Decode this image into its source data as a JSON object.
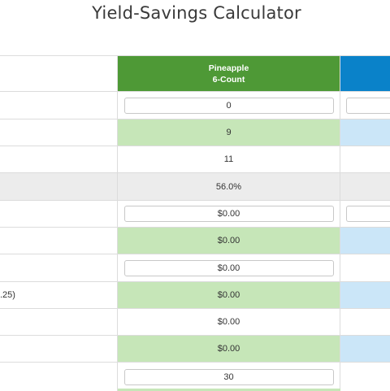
{
  "page_title": "Yield-Savings Calculator",
  "columns": {
    "col1_header_line1": "Pineapple",
    "col1_header_line2": "6-Count"
  },
  "rows": [
    {
      "label": "",
      "value": "0",
      "kind": "input",
      "has_col2_input": true
    },
    {
      "label": "",
      "value": "9",
      "kind": "green"
    },
    {
      "label": "",
      "value": "11",
      "kind": "plain"
    },
    {
      "label": "",
      "value": "56.0%",
      "kind": "gray"
    },
    {
      "label": "",
      "value": "$0.00",
      "kind": "input",
      "has_col2_input": true
    },
    {
      "label": "",
      "value": "$0.00",
      "kind": "green"
    },
    {
      "label": "",
      "value": "$0.00",
      "kind": "input"
    },
    {
      "label": ".25)",
      "value": "$0.00",
      "kind": "green"
    },
    {
      "label": "",
      "value": "$0.00",
      "kind": "plain"
    },
    {
      "label": "",
      "value": "$0.00",
      "kind": "green"
    },
    {
      "label": "",
      "value": "30",
      "kind": "input"
    }
  ],
  "colors": {
    "pineapple_header": "#4e9936",
    "second_header": "#0a82c9",
    "green_row": "#c6e6b8",
    "blue_row": "#cbe6f8",
    "gray_row": "#ececec"
  }
}
